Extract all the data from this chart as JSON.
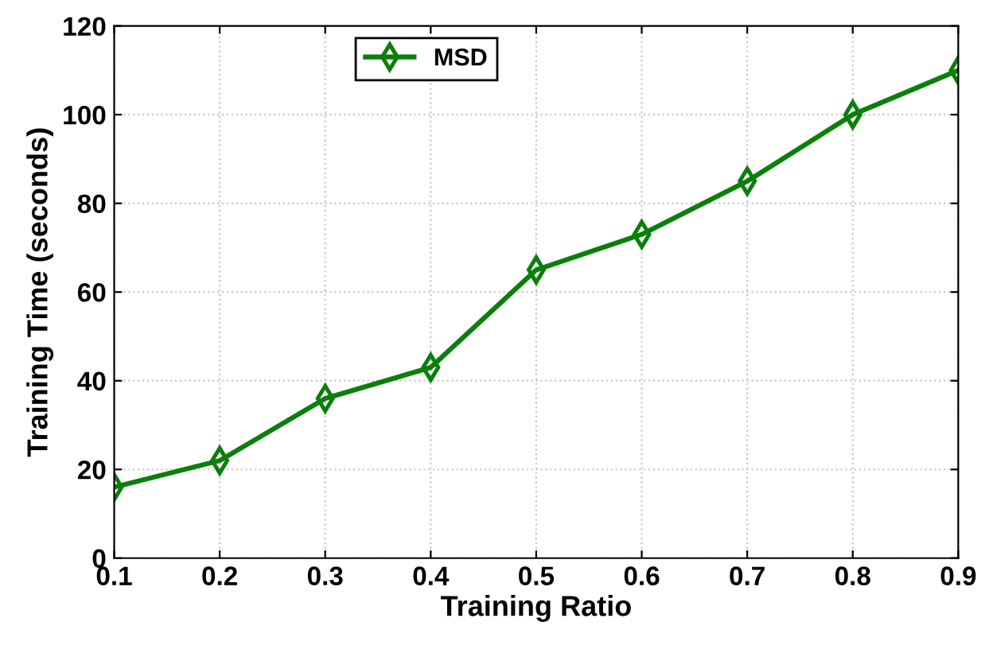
{
  "chart_data": {
    "type": "line",
    "xlabel": "Training Ratio",
    "ylabel": "Training Time (seconds)",
    "x": [
      0.1,
      0.2,
      0.3,
      0.4,
      0.5,
      0.6,
      0.7,
      0.8,
      0.9
    ],
    "series": [
      {
        "name": "MSD",
        "color": "#0a7f0a",
        "values": [
          16,
          22,
          36,
          43,
          65,
          73,
          85,
          100,
          110
        ]
      }
    ],
    "xlim": [
      0.1,
      0.9
    ],
    "xticks": [
      0.1,
      0.2,
      0.3,
      0.4,
      0.5,
      0.6,
      0.7,
      0.8,
      0.9
    ],
    "ylim": [
      0,
      120
    ],
    "yticks": [
      0,
      20,
      40,
      60,
      80,
      100,
      120
    ],
    "grid": true,
    "legend": "top",
    "marker": "diamond",
    "line_style": "solid"
  }
}
